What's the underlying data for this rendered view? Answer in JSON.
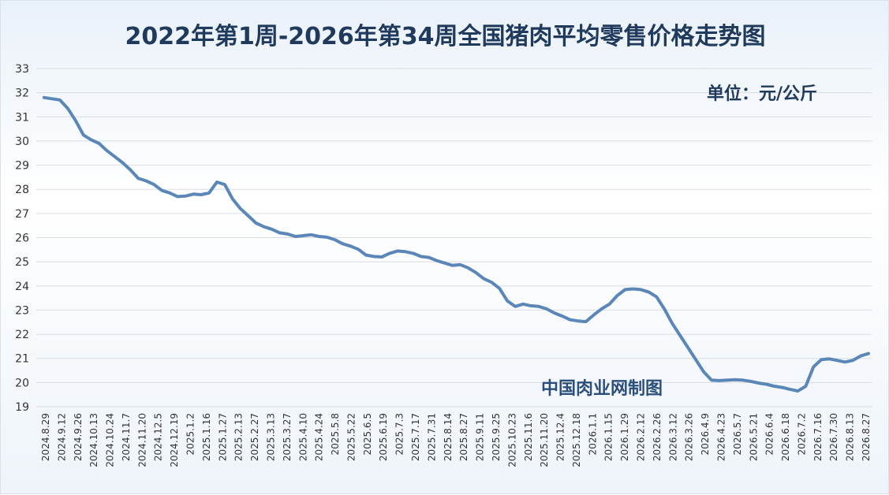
{
  "title": "2022年第1周-2026年第34周全国猪肉平均零售价格走势图",
  "unit": "单位：元/公斤",
  "watermark": "中国肉业网制图",
  "colors": {
    "line": "#5b86b8",
    "title": "#1f3a5c"
  },
  "chart_data": {
    "type": "line",
    "title": "2022年第1周-2026年第34周全国猪肉平均零售价格走势图",
    "ylabel": "单位：元/公斤",
    "ylim": [
      19,
      33
    ],
    "yticks": [
      19,
      20,
      21,
      22,
      23,
      24,
      25,
      26,
      27,
      28,
      29,
      30,
      31,
      32,
      33
    ],
    "grid": true,
    "x_tick_labels": [
      "2024.8.29",
      "2024.9.12",
      "2024.9.26",
      "2024.10.13",
      "2024.10.24",
      "2024.11.7",
      "2024.11.20",
      "2024.12.5",
      "2024.12.19",
      "2025.1.2",
      "2025.1.16",
      "2025.1.27",
      "2025.2.13",
      "2025.2.27",
      "2025.3.13",
      "2025.3.27",
      "2025.4.10",
      "2025.4.24",
      "2025.5.8",
      "2025.5.22",
      "2025.6.5",
      "2025.6.19",
      "2025.7.3",
      "2025.7.17",
      "2025.7.31",
      "2025.8.14",
      "2025.8.27",
      "2025.9.11",
      "2025.9.25",
      "2025.10.23",
      "2025.11.6",
      "2025.11.20",
      "2025.12.4",
      "2025.12.18",
      "2026.1.1",
      "2026.1.15",
      "2026.1.29",
      "2026.2.12",
      "2026.2.26",
      "2026.3.12",
      "2026.3.26",
      "2026.4.9",
      "2026.4.23",
      "2026.5.7",
      "2026.5.21",
      "2026.6.4",
      "2026.6.18",
      "2026.7.2",
      "2026.7.16",
      "2026.7.30",
      "2026.8.13",
      "2026.8.27"
    ],
    "series": [
      {
        "values": [
          31.8,
          31.75,
          31.7,
          31.35,
          30.85,
          30.25,
          30.05,
          29.9,
          29.6,
          29.35,
          29.1,
          28.8,
          28.45,
          28.35,
          28.2,
          27.95,
          27.85,
          27.7,
          27.72,
          27.8,
          27.78,
          27.85,
          28.3,
          28.2,
          27.6,
          27.2,
          26.9,
          26.6,
          26.45,
          26.35,
          26.2,
          26.15,
          26.05,
          26.08,
          26.12,
          26.05,
          26.02,
          25.92,
          25.75,
          25.65,
          25.52,
          25.28,
          25.22,
          25.2,
          25.35,
          25.45,
          25.42,
          25.35,
          25.22,
          25.18,
          25.05,
          24.95,
          24.85,
          24.88,
          24.75,
          24.55,
          24.3,
          24.15,
          23.9,
          23.38,
          23.15,
          23.25,
          23.18,
          23.15,
          23.05,
          22.88,
          22.75,
          22.6,
          22.55,
          22.52,
          22.8,
          23.05,
          23.25,
          23.6,
          23.85,
          23.88,
          23.85,
          23.75,
          23.55,
          23.05,
          22.45,
          21.95,
          21.45,
          20.95,
          20.45,
          20.1,
          20.08,
          20.1,
          20.12,
          20.1,
          20.05,
          19.98,
          19.93,
          19.85,
          19.8,
          19.72,
          19.65,
          19.85,
          20.65,
          20.95,
          20.98,
          20.92,
          20.85,
          20.92,
          21.1,
          21.2
        ]
      }
    ]
  }
}
